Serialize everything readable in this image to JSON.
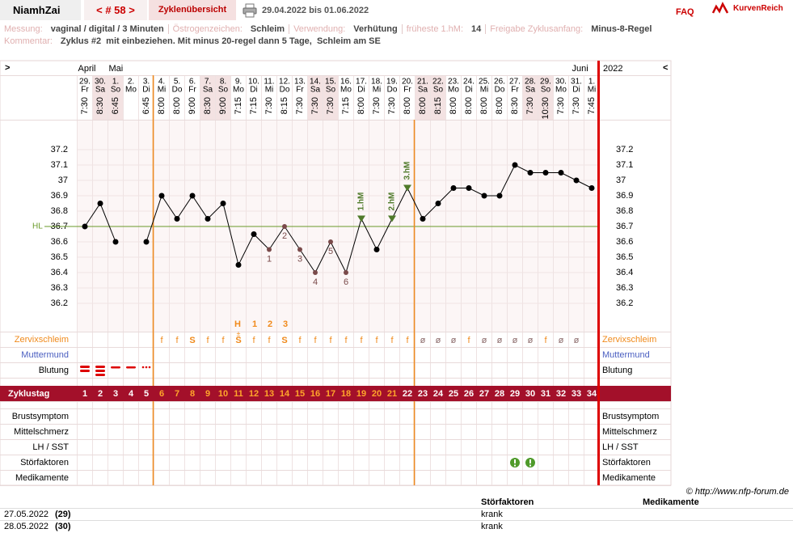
{
  "header": {
    "user": "NiamhZai",
    "cycle_nav": "< # 58 >",
    "tab": "Zyklenübersicht",
    "range": "29.04.2022 bis 01.06.2022",
    "faq": "FAQ",
    "logo": "KurvenReich"
  },
  "info": {
    "fields": [
      {
        "label": "Messung:",
        "value": "vaginal / digital / 3 Minuten"
      },
      {
        "label": "Östrogenzeichen:",
        "value": "Schleim"
      },
      {
        "label": "Verwendung:",
        "value": "Verhütung"
      },
      {
        "label": "früheste 1.hM:",
        "value": "14"
      },
      {
        "label": "Freigabe Zyklusanfang:",
        "value": "Minus-8-Regel"
      }
    ],
    "comment_label": "Kommentar:",
    "comment": "Zyklus #2  mit einbeziehen. Mit minus 20-regel dann 5 Tage,  Schleim am SE"
  },
  "chart": {
    "nav_left": ">",
    "nav_right": "<",
    "year": "2022",
    "months": [
      "April",
      null,
      "Mai",
      null,
      null,
      null,
      null,
      null,
      null,
      null,
      null,
      null,
      null,
      null,
      null,
      null,
      null,
      null,
      null,
      null,
      null,
      null,
      null,
      null,
      null,
      null,
      null,
      null,
      null,
      null,
      null,
      null,
      "Juni",
      null
    ],
    "dates": [
      "29.",
      "30.",
      "1.",
      "2.",
      "3.",
      "4.",
      "5.",
      "6.",
      "7.",
      "8.",
      "9.",
      "10.",
      "11.",
      "12.",
      "13.",
      "14.",
      "15.",
      "16.",
      "17.",
      "18.",
      "19.",
      "20.",
      "21.",
      "22.",
      "23.",
      "24.",
      "25.",
      "26.",
      "27.",
      "28.",
      "29.",
      "30.",
      "31.",
      "1."
    ],
    "weekdays": [
      "Fr",
      "Sa",
      "So",
      "Mo",
      "Di",
      "Mi",
      "Do",
      "Fr",
      "Sa",
      "So",
      "Mo",
      "Di",
      "Mi",
      "Do",
      "Fr",
      "Sa",
      "So",
      "Mo",
      "Di",
      "Mi",
      "Do",
      "Fr",
      "Sa",
      "So",
      "Mo",
      "Di",
      "Mi",
      "Do",
      "Fr",
      "Sa",
      "So",
      "Mo",
      "Di",
      "Mi"
    ],
    "times": [
      "7:30",
      "8:30",
      "6:45",
      null,
      "6:45",
      "8:00",
      "8:00",
      "9:00",
      "8:30",
      "9:00",
      "7:15",
      "7:15",
      "7:30",
      "8:15",
      "7:30",
      "7:30",
      "7:30",
      "7:15",
      "8:00",
      "7:30",
      "7:30",
      "8:00",
      "8:00",
      "8:15",
      "8:00",
      "8:00",
      "8:00",
      "8:00",
      "8:30",
      "7:30",
      "10:30",
      "7:30",
      "7:30",
      "7:45"
    ],
    "temperatures": [
      36.7,
      36.85,
      36.6,
      null,
      36.6,
      36.9,
      36.75,
      36.9,
      36.75,
      36.85,
      36.45,
      36.65,
      36.55,
      36.7,
      36.55,
      36.4,
      36.6,
      36.4,
      36.75,
      36.55,
      36.75,
      36.95,
      36.75,
      36.85,
      36.95,
      36.95,
      36.9,
      36.9,
      37.1,
      37.05,
      37.05,
      37.05,
      37,
      36.95
    ],
    "ylim": [
      36.1,
      37.3
    ],
    "yticks": [
      36.2,
      36.3,
      36.4,
      36.5,
      36.6,
      36.7,
      36.8,
      36.9,
      37,
      37.1,
      37.2
    ],
    "coverline": {
      "label": "HL",
      "value": 36.7
    },
    "low_labels": [
      null,
      null,
      null,
      null,
      null,
      null,
      null,
      null,
      null,
      null,
      null,
      null,
      "1",
      "2",
      "3",
      "4",
      "5",
      "6",
      null,
      null,
      null,
      null,
      null,
      null,
      null,
      null,
      null,
      null,
      null,
      null,
      null,
      null,
      null,
      null
    ],
    "hm_labels": [
      null,
      null,
      null,
      null,
      null,
      null,
      null,
      null,
      null,
      null,
      null,
      null,
      null,
      null,
      null,
      null,
      null,
      null,
      "1.hM",
      null,
      "2.hM",
      "3.hM",
      null,
      null,
      null,
      null,
      null,
      null,
      null,
      null,
      null,
      null,
      null,
      null
    ],
    "cervix_peak_labels": [
      null,
      null,
      null,
      null,
      null,
      null,
      null,
      null,
      null,
      null,
      "H",
      "1",
      "2",
      "3",
      null,
      null,
      null,
      null,
      null,
      null,
      null,
      null,
      null,
      null,
      null,
      null,
      null,
      null,
      null,
      null,
      null,
      null,
      null,
      null
    ],
    "cervix_marks": [
      null,
      null,
      null,
      null,
      null,
      null,
      null,
      null,
      null,
      null,
      "±",
      null,
      null,
      null,
      null,
      null,
      null,
      null,
      null,
      null,
      null,
      null,
      null,
      null,
      null,
      null,
      null,
      null,
      null,
      null,
      null,
      null,
      null,
      null
    ],
    "cervix": [
      null,
      null,
      null,
      null,
      null,
      "f",
      "f",
      "S",
      "f",
      "f",
      "S",
      "f",
      "f",
      "S",
      "f",
      "f",
      "f",
      "f",
      "f",
      "f",
      "f",
      "f",
      "ø",
      "ø",
      "ø",
      "f",
      "ø",
      "ø",
      "ø",
      "ø",
      "f",
      "ø",
      "ø",
      null
    ],
    "cycle_days": [
      1,
      2,
      3,
      4,
      5,
      6,
      7,
      8,
      9,
      10,
      11,
      12,
      13,
      14,
      15,
      16,
      17,
      18,
      19,
      20,
      21,
      22,
      23,
      24,
      25,
      26,
      27,
      28,
      29,
      30,
      31,
      32,
      33,
      34
    ],
    "row_labels": {
      "cervix": "Zervixschleim",
      "cervix_os": "Muttermund",
      "bleeding": "Blutung",
      "cycle_day": "Zyklustag",
      "breast": "Brustsymptom",
      "midpain": "Mittelschmerz",
      "lh": "LH / SST",
      "disturb": "Störfaktoren",
      "meds": "Medikamente"
    }
  },
  "footer": {
    "copyright": "© http://www.nfp-forum.de",
    "headers": [
      "Störfaktoren",
      "Medikamente"
    ],
    "rows": [
      [
        "27.05.2022",
        "(29)",
        "krank"
      ],
      [
        "28.05.2022",
        "(30)",
        "krank"
      ]
    ]
  }
}
